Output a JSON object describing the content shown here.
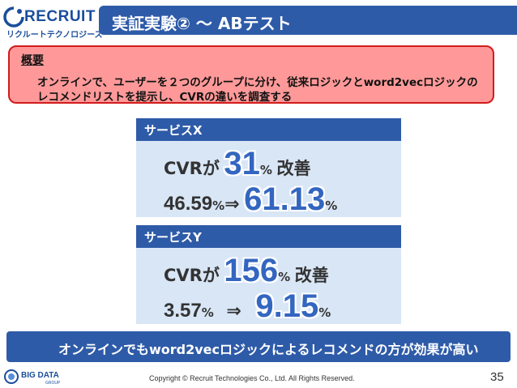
{
  "logo": {
    "name": "RECRUIT",
    "sub": "リクルートテクノロジーズ"
  },
  "title": "実証実験② 〜 ABテスト",
  "summary": {
    "heading": "概要",
    "line1": "オンラインで、ユーザーを２つのグループに分け、従来ロジックとword2vecロジックの",
    "line2": "レコメンドリストを提示し、CVRの違いを調査する"
  },
  "service_x": {
    "name": "サービスX",
    "cvr_label": "CVRが",
    "improvement": "31",
    "pct": "%",
    "improve_label": "改善",
    "before": "46.59",
    "arrow": "⇒",
    "after": "61.13"
  },
  "service_y": {
    "name": "サービスY",
    "cvr_label": "CVRが",
    "improvement": "156",
    "pct": "%",
    "improve_label": "改善",
    "before": "3.57",
    "arrow": "⇒",
    "after": "9.15"
  },
  "conclusion": "オンラインでもword2vecロジックによるレコメンドの方が効果が高い",
  "footer": {
    "logo": "BIG DATA",
    "logo_sub": "GROUP",
    "copyright": "Copyright © Recruit Technologies Co., Ltd. All Rights Reserved.",
    "page": "35"
  },
  "colors": {
    "accent": "#2e5ba8",
    "panel_bg": "#d8e6f6",
    "summary_bg": "#ff9999",
    "summary_border": "#d21c1c",
    "highlight": "#3366c0"
  }
}
